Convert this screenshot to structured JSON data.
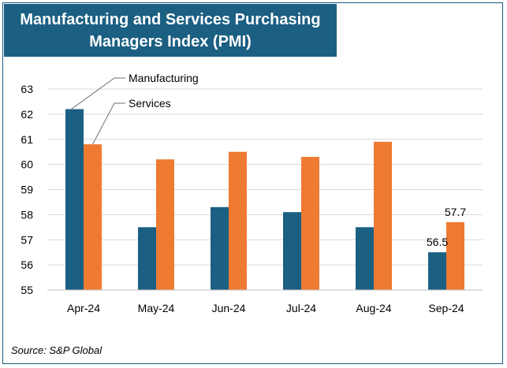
{
  "title": {
    "line1": "Manufacturing and Services Purchasing",
    "line2": "Managers Index (PMI)"
  },
  "source": "Source: S&P Global",
  "colors": {
    "manufacturing": "#1b5f82",
    "services": "#ef7a32",
    "title_bg": "#1b5f82",
    "grid": "#d9d9d9"
  },
  "chart_data": {
    "type": "bar",
    "title": "Manufacturing and Services Purchasing Managers Index (PMI)",
    "categories": [
      "Apr-24",
      "May-24",
      "Jun-24",
      "Jul-24",
      "Aug-24",
      "Sep-24"
    ],
    "series": [
      {
        "name": "Manufacturing",
        "values": [
          62.2,
          57.5,
          58.3,
          58.1,
          57.5,
          56.5
        ]
      },
      {
        "name": "Services",
        "values": [
          60.8,
          60.2,
          60.5,
          60.3,
          60.9,
          57.7
        ]
      }
    ],
    "data_labels": [
      {
        "series": "Manufacturing",
        "category": "Sep-24",
        "text": "56.5"
      },
      {
        "series": "Services",
        "category": "Sep-24",
        "text": "57.7"
      }
    ],
    "yticks": [
      "55",
      "56",
      "57",
      "58",
      "59",
      "60",
      "61",
      "62",
      "63"
    ],
    "ylim": [
      55,
      63
    ],
    "grid": true,
    "legend": "callout labels at top-left pointing to first bars"
  }
}
